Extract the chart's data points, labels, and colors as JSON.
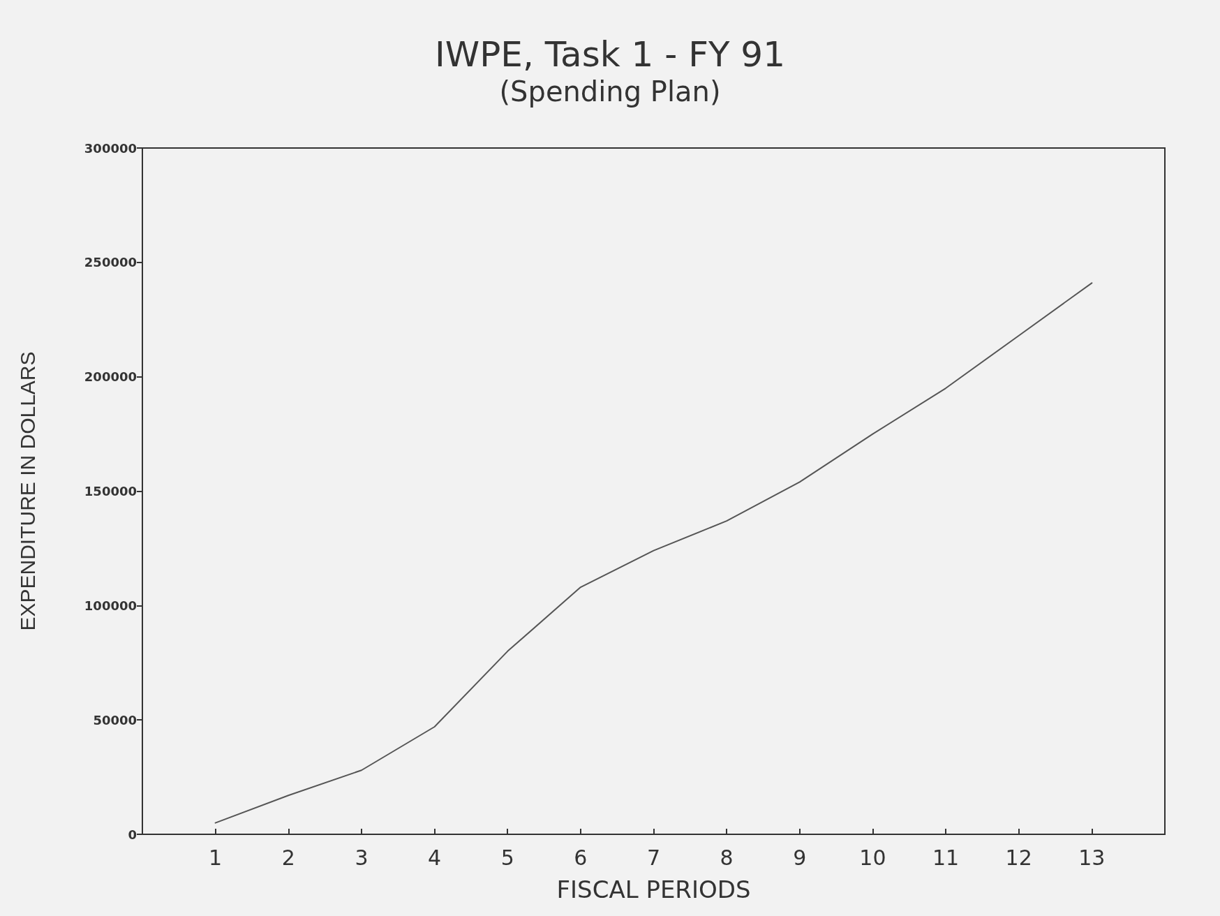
{
  "chart_data": {
    "type": "line",
    "title": "IWPE, Task 1 - FY 91",
    "subtitle": "(Spending Plan)",
    "xlabel": "FISCAL PERIODS",
    "ylabel": "EXPENDITURE IN DOLLARS",
    "x": [
      1,
      2,
      3,
      4,
      5,
      6,
      7,
      8,
      9,
      10,
      11,
      12,
      13
    ],
    "series": [
      {
        "color": "#555555",
        "values": [
          5000,
          17000,
          28000,
          47000,
          80000,
          108000,
          124000,
          137000,
          154000,
          175000,
          195000,
          218000,
          241000
        ]
      }
    ],
    "xlim": [
      0,
      14
    ],
    "xticks": [
      1,
      2,
      3,
      4,
      5,
      6,
      7,
      8,
      9,
      10,
      11,
      12,
      13
    ],
    "ylim": [
      0,
      300000
    ],
    "yticks": [
      0,
      50000,
      100000,
      150000,
      200000,
      250000,
      300000
    ],
    "grid": false,
    "marker": "none",
    "line_style": "solid"
  }
}
